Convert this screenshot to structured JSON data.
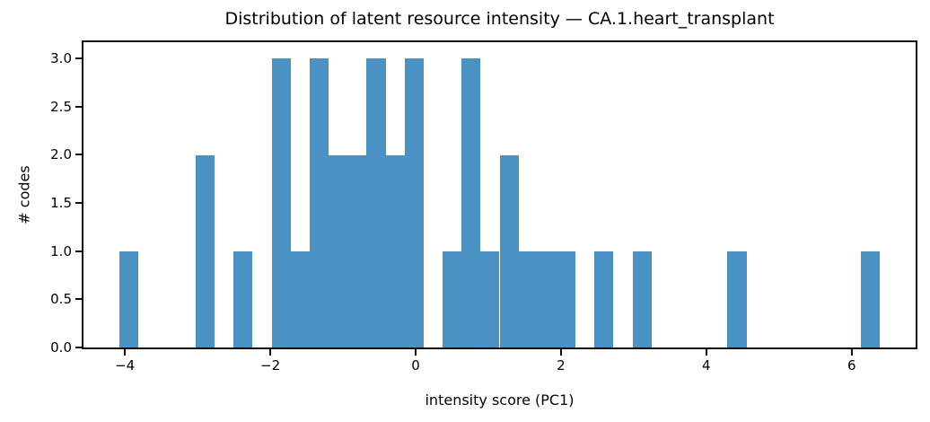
{
  "chart_data": {
    "type": "bar",
    "subtype": "histogram",
    "title": "Distribution of latent resource intensity — CA.1.heart_transplant",
    "xlabel": "intensity score (PC1)",
    "ylabel": "# codes",
    "bar_color": "#4b92c4",
    "bin_start": -4.073,
    "bin_width": 0.2614,
    "counts": [
      1,
      0,
      0,
      0,
      2,
      0,
      1,
      0,
      3,
      1,
      3,
      2,
      2,
      3,
      2,
      3,
      0,
      1,
      3,
      1,
      2,
      1,
      1,
      1,
      0,
      1,
      0,
      1,
      0,
      0,
      0,
      0,
      1,
      0,
      0,
      0,
      0,
      0,
      0,
      1
    ],
    "xlim": [
      -4.57,
      6.88
    ],
    "ylim": [
      0,
      3.17
    ],
    "xticks": [
      {
        "value": -4,
        "label": "−4"
      },
      {
        "value": -2,
        "label": "−2"
      },
      {
        "value": 0,
        "label": "0"
      },
      {
        "value": 2,
        "label": "2"
      },
      {
        "value": 4,
        "label": "4"
      },
      {
        "value": 6,
        "label": "6"
      }
    ],
    "yticks": [
      {
        "value": 0.0,
        "label": "0.0"
      },
      {
        "value": 0.5,
        "label": "0.5"
      },
      {
        "value": 1.0,
        "label": "1.0"
      },
      {
        "value": 1.5,
        "label": "1.5"
      },
      {
        "value": 2.0,
        "label": "2.0"
      },
      {
        "value": 2.5,
        "label": "2.5"
      },
      {
        "value": 3.0,
        "label": "3.0"
      }
    ],
    "grid": false,
    "legend": null
  }
}
